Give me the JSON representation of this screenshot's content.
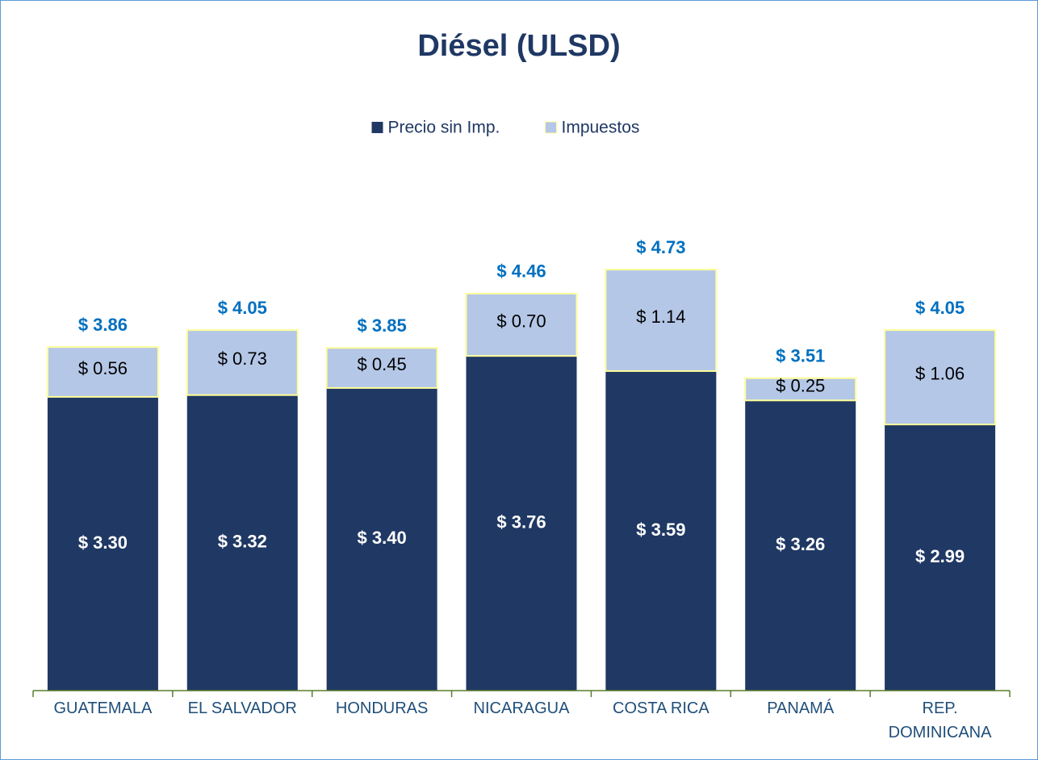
{
  "chart_data": {
    "type": "stacked_bar",
    "title": "Diésel (ULSD)",
    "categories": [
      "GUATEMALA",
      "EL SALVADOR",
      "HONDURAS",
      "NICARAGUA",
      "COSTA RICA",
      "PANAMÁ",
      "REP. DOMINICANA"
    ],
    "series": [
      {
        "name": "Precio sin Imp.",
        "color": "#203864",
        "values": [
          3.3,
          3.32,
          3.4,
          3.76,
          3.59,
          3.26,
          2.99
        ],
        "value_labels": [
          "$ 3.30",
          "$ 3.32",
          "$ 3.40",
          "$ 3.76",
          "$ 3.59",
          "$ 3.26",
          "$ 2.99"
        ]
      },
      {
        "name": "Impuestos",
        "color": "#b4c7e7",
        "values": [
          0.56,
          0.73,
          0.45,
          0.7,
          1.14,
          0.25,
          1.06
        ],
        "value_labels": [
          "$ 0.56",
          "$ 0.73",
          "$ 0.45",
          "$ 0.70",
          "$ 1.14",
          "$ 0.25",
          "$ 1.06"
        ]
      }
    ],
    "totals": [
      3.86,
      4.05,
      3.85,
      4.46,
      4.73,
      3.51,
      4.05
    ],
    "total_labels": [
      "$ 3.86",
      "$ 4.05",
      "$ 3.85",
      "$ 4.46",
      "$ 4.73",
      "$ 3.51",
      "$ 4.05"
    ],
    "total_color": "#0070c0",
    "ylim": [
      0,
      6
    ],
    "legend": "top"
  }
}
